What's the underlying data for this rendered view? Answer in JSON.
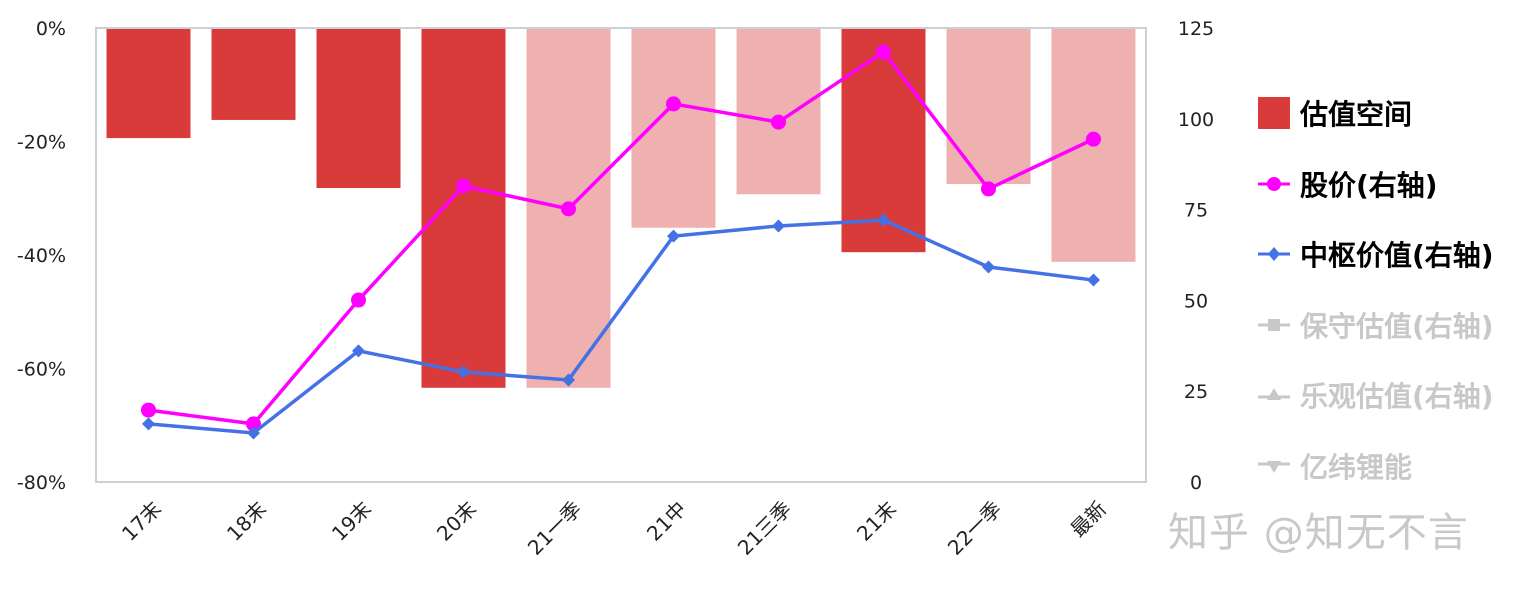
{
  "chart_data": {
    "type": "bar+line",
    "categories": [
      "17末",
      "18末",
      "19末",
      "20末",
      "21一季",
      "21中",
      "21三季",
      "21末",
      "22一季",
      "最新"
    ],
    "left_axis": {
      "ticks": [
        "0%",
        "-20%",
        "-40%",
        "-60%",
        "-80%"
      ],
      "range": [
        -80,
        0
      ],
      "unit": "%"
    },
    "right_axis": {
      "ticks": [
        "125",
        "100",
        "75",
        "50",
        "25",
        "0"
      ],
      "range": [
        0,
        125
      ]
    },
    "grid": false,
    "legend_placement": "right",
    "bar_series": {
      "name": "估值空间",
      "axis": "left",
      "values": [
        -19.4,
        -16.2,
        -28.2,
        -63.4,
        -63.4,
        -35.2,
        -29.3,
        -39.5,
        -27.5,
        -41.2
      ],
      "highlight": [
        true,
        true,
        true,
        true,
        false,
        false,
        false,
        true,
        false,
        false
      ],
      "color": "#d93a3a",
      "light_color": "#efb0b0"
    },
    "series": [
      {
        "name": "股价(右轴)",
        "axis": "right",
        "marker": "circle",
        "color": "#ff00ff",
        "visible": true,
        "values": [
          19.8,
          16.0,
          50.1,
          81.5,
          75.2,
          104.1,
          99.1,
          118.4,
          80.7,
          94.4
        ]
      },
      {
        "name": "中枢价值(右轴)",
        "axis": "right",
        "marker": "diamond",
        "color": "#4472e4",
        "visible": true,
        "values": [
          16.0,
          13.5,
          36.1,
          30.3,
          28.1,
          67.7,
          70.5,
          72.1,
          59.2,
          55.6
        ]
      },
      {
        "name": "保守估值(右轴)",
        "marker": "square",
        "color": "#c8c8c8",
        "visible": false
      },
      {
        "name": "乐观估值(右轴)",
        "marker": "triangle-up",
        "color": "#c8c8c8",
        "visible": false
      },
      {
        "name": "亿纬锂能",
        "marker": "triangle-down",
        "color": "#c8c8c8",
        "visible": false
      }
    ]
  },
  "watermark": "知乎 @知无不言"
}
